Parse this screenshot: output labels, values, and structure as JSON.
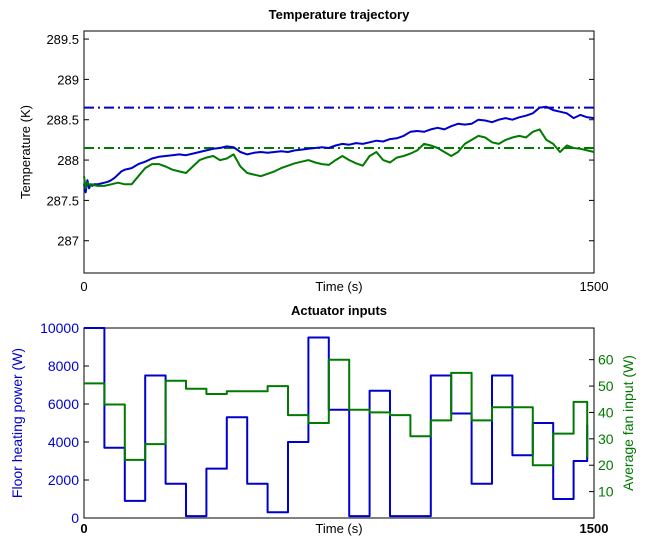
{
  "chart_data": [
    {
      "type": "line",
      "title": "Temperature trajectory",
      "xlabel": "Time (s)",
      "ylabel": "Temperature (K)",
      "xlim": [
        0,
        1500
      ],
      "ylim": [
        286.6,
        289.6
      ],
      "x_ticks": [
        0,
        1500
      ],
      "x_tick_labels": [
        "0",
        "1500"
      ],
      "y_ticks": [
        287,
        287.5,
        288,
        288.5,
        289,
        289.5
      ],
      "y_tick_labels": [
        "287",
        "287.5",
        "288",
        "288.5",
        "289",
        "289.5"
      ],
      "grid": false,
      "reference_lines": [
        {
          "y": 288.65,
          "color": "#0000cc",
          "style": "dash-dot"
        },
        {
          "y": 288.15,
          "color": "#007a00",
          "style": "dash-dot"
        }
      ],
      "series": [
        {
          "color": "#0000cc",
          "x": [
            0,
            5,
            10,
            15,
            20,
            25,
            30,
            40,
            50,
            60,
            70,
            80,
            90,
            100,
            110,
            120,
            140,
            160,
            180,
            200,
            220,
            240,
            260,
            280,
            300,
            320,
            340,
            360,
            380,
            400,
            420,
            440,
            460,
            480,
            500,
            520,
            540,
            560,
            580,
            600,
            620,
            640,
            660,
            680,
            700,
            720,
            740,
            760,
            780,
            800,
            820,
            840,
            860,
            880,
            900,
            920,
            940,
            960,
            980,
            1000,
            1020,
            1040,
            1060,
            1080,
            1100,
            1120,
            1140,
            1160,
            1180,
            1200,
            1220,
            1240,
            1260,
            1280,
            1300,
            1320,
            1340,
            1360,
            1380,
            1400,
            1420,
            1440,
            1460,
            1480,
            1500
          ],
          "y": [
            287.7,
            287.6,
            287.75,
            287.65,
            287.7,
            287.68,
            287.7,
            287.7,
            287.71,
            287.72,
            287.73,
            287.75,
            287.78,
            287.82,
            287.86,
            287.88,
            287.9,
            287.95,
            287.98,
            288.02,
            288.04,
            288.05,
            288.06,
            288.07,
            288.06,
            288.08,
            288.1,
            288.12,
            288.14,
            288.15,
            288.17,
            288.16,
            288.1,
            288.07,
            288.09,
            288.1,
            288.09,
            288.1,
            288.11,
            288.1,
            288.12,
            288.13,
            288.14,
            288.15,
            288.16,
            288.15,
            288.18,
            288.2,
            288.19,
            288.21,
            288.2,
            288.22,
            288.24,
            288.23,
            288.26,
            288.27,
            288.3,
            288.35,
            288.36,
            288.35,
            288.38,
            288.4,
            288.38,
            288.42,
            288.45,
            288.44,
            288.45,
            288.5,
            288.49,
            288.47,
            288.5,
            288.52,
            288.5,
            288.53,
            288.55,
            288.58,
            288.65,
            288.66,
            288.62,
            288.6,
            288.58,
            288.52,
            288.56,
            288.53,
            288.52
          ]
        },
        {
          "color": "#007a00",
          "x": [
            0,
            5,
            10,
            15,
            20,
            25,
            30,
            40,
            60,
            80,
            100,
            120,
            140,
            160,
            180,
            200,
            220,
            240,
            260,
            280,
            300,
            320,
            340,
            360,
            380,
            400,
            420,
            440,
            460,
            480,
            500,
            520,
            540,
            560,
            580,
            600,
            620,
            640,
            660,
            680,
            700,
            720,
            740,
            760,
            780,
            800,
            820,
            840,
            860,
            880,
            900,
            920,
            940,
            960,
            980,
            1000,
            1020,
            1040,
            1060,
            1080,
            1100,
            1120,
            1140,
            1160,
            1180,
            1200,
            1220,
            1240,
            1260,
            1280,
            1300,
            1320,
            1340,
            1360,
            1380,
            1400,
            1420,
            1440,
            1460,
            1480,
            1500
          ],
          "y": [
            287.8,
            287.65,
            287.72,
            287.7,
            287.68,
            287.7,
            287.69,
            287.68,
            287.68,
            287.7,
            287.72,
            287.7,
            287.7,
            287.8,
            287.9,
            287.95,
            287.95,
            287.92,
            287.88,
            287.86,
            287.84,
            287.92,
            288.0,
            288.03,
            288.05,
            288.0,
            288.02,
            288.07,
            287.92,
            287.84,
            287.82,
            287.8,
            287.83,
            287.86,
            287.9,
            287.93,
            287.96,
            287.98,
            288.0,
            287.97,
            287.95,
            287.94,
            288.0,
            288.05,
            288.0,
            287.96,
            287.93,
            288.05,
            288.1,
            288.0,
            287.97,
            288.03,
            288.05,
            288.08,
            288.12,
            288.2,
            288.18,
            288.15,
            288.1,
            288.05,
            288.1,
            288.2,
            288.25,
            288.3,
            288.28,
            288.22,
            288.2,
            288.25,
            288.28,
            288.3,
            288.28,
            288.35,
            288.38,
            288.25,
            288.2,
            288.1,
            288.18,
            288.15,
            288.14,
            288.12,
            288.1
          ]
        }
      ]
    },
    {
      "type": "line",
      "title": "Actuator inputs",
      "xlabel": "Time (s)",
      "ylabel": "Floor heating power (W)",
      "ylabel_right": "Average fan input (W)",
      "xlim": [
        0,
        1500
      ],
      "ylim": [
        0,
        10000
      ],
      "ylim_right": [
        0,
        72
      ],
      "x_ticks": [
        0,
        1500
      ],
      "x_tick_labels": [
        "0",
        "1500"
      ],
      "y_ticks": [
        0,
        2000,
        4000,
        6000,
        8000,
        10000
      ],
      "y_tick_labels": [
        "0",
        "2000",
        "4000",
        "6000",
        "8000",
        "10000"
      ],
      "y_ticks_right": [
        10,
        20,
        30,
        40,
        50,
        60
      ],
      "y_tick_labels_right": [
        "10",
        "20",
        "30",
        "40",
        "50",
        "60"
      ],
      "grid": false,
      "series": [
        {
          "axis": "left",
          "step": true,
          "color": "#0000cc",
          "x": [
            0,
            60,
            120,
            180,
            240,
            300,
            360,
            420,
            480,
            540,
            600,
            660,
            720,
            780,
            840,
            900,
            960,
            1020,
            1080,
            1140,
            1200,
            1260,
            1320,
            1380,
            1440,
            1480
          ],
          "y": [
            10000,
            3700,
            900,
            7500,
            1800,
            100,
            2600,
            5300,
            1800,
            300,
            4000,
            9500,
            5700,
            100,
            6700,
            100,
            100,
            7500,
            5500,
            1800,
            7500,
            3300,
            5000,
            1000,
            3000,
            4900
          ]
        },
        {
          "axis": "right",
          "step": true,
          "color": "#007a00",
          "x": [
            0,
            60,
            120,
            180,
            240,
            300,
            360,
            420,
            480,
            540,
            600,
            660,
            720,
            780,
            840,
            900,
            960,
            1020,
            1080,
            1140,
            1200,
            1260,
            1320,
            1380,
            1440,
            1480
          ],
          "y": [
            51,
            43,
            22,
            28,
            52,
            49,
            47,
            48,
            48,
            50,
            39,
            36,
            60,
            41,
            40,
            39,
            31,
            37,
            55,
            37,
            42,
            42,
            20,
            32,
            44,
            23
          ]
        }
      ]
    }
  ]
}
